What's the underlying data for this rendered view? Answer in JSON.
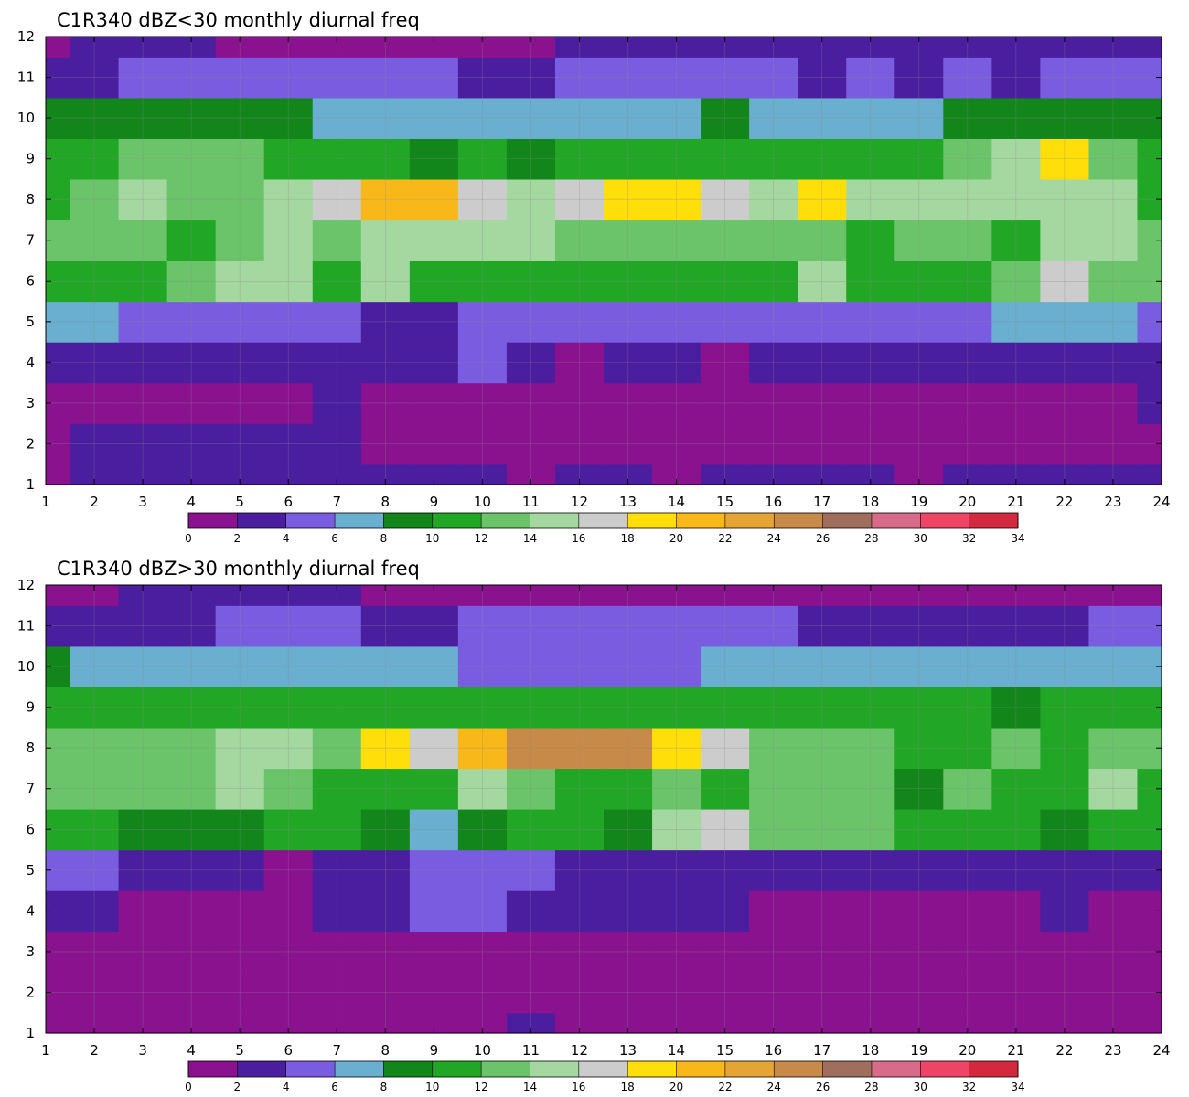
{
  "colorbar": {
    "levels": [
      0,
      2,
      4,
      6,
      8,
      10,
      12,
      14,
      16,
      18,
      20,
      22,
      24,
      26,
      28,
      30,
      32,
      34
    ],
    "colors": [
      "#8b128f",
      "#4b1ea0",
      "#7a5ce0",
      "#6aaed0",
      "#12861a",
      "#22a625",
      "#6cc46a",
      "#a5d8a0",
      "#cccccc",
      "#ffde0a",
      "#f8b81a",
      "#e5a535",
      "#c88a48",
      "#a06e5c",
      "#d86a8a",
      "#ee4466",
      "#d4283e"
    ]
  },
  "chart_data": [
    {
      "type": "heatmap",
      "title": "C1R340 dBZ<30 monthly diurnal freq",
      "xlim": [
        1,
        24
      ],
      "ylim": [
        1,
        12
      ],
      "x_ticks": [
        "1",
        "2",
        "3",
        "4",
        "5",
        "6",
        "7",
        "8",
        "9",
        "10",
        "11",
        "12",
        "13",
        "14",
        "15",
        "16",
        "17",
        "18",
        "19",
        "20",
        "21",
        "22",
        "23",
        "24"
      ],
      "y_ticks": [
        "1",
        "2",
        "3",
        "4",
        "5",
        "6",
        "7",
        "8",
        "9",
        "10",
        "11",
        "12"
      ],
      "rows": [
        [
          1,
          2,
          2,
          3,
          3,
          3,
          3,
          3,
          3,
          3,
          1,
          3,
          3,
          1,
          3,
          3,
          3,
          3,
          1,
          3,
          3,
          3,
          3,
          3
        ],
        [
          1,
          3,
          3,
          3,
          3,
          3,
          3,
          1,
          1,
          1,
          1,
          1,
          1,
          1,
          1,
          1,
          1,
          1,
          1,
          1,
          1,
          1,
          1,
          1
        ],
        [
          1,
          1,
          1,
          1,
          1,
          1,
          3,
          1,
          1,
          1,
          1,
          1,
          1,
          1,
          1,
          1,
          1,
          1,
          1,
          1,
          1,
          1,
          1,
          3
        ],
        [
          3,
          3,
          3,
          3,
          3,
          3,
          3,
          3,
          3,
          5,
          3,
          1,
          3,
          3,
          1,
          3,
          3,
          3,
          3,
          3,
          3,
          3,
          3,
          3
        ],
        [
          7,
          7,
          5,
          5,
          5,
          5,
          5,
          3,
          3,
          5,
          5,
          5,
          5,
          5,
          5,
          5,
          5,
          5,
          5,
          5,
          7,
          7,
          7,
          5
        ],
        [
          11,
          11,
          11,
          13,
          15,
          15,
          11,
          15,
          11,
          11,
          11,
          11,
          11,
          11,
          11,
          11,
          15,
          11,
          11,
          11,
          13,
          17,
          13,
          13
        ],
        [
          13,
          13,
          13,
          11,
          13,
          15,
          13,
          15,
          15,
          15,
          15,
          13,
          13,
          13,
          13,
          13,
          13,
          11,
          13,
          13,
          11,
          15,
          15,
          13
        ],
        [
          11,
          13,
          15,
          13,
          13,
          15,
          17,
          21,
          21,
          17,
          15,
          17,
          19,
          19,
          17,
          15,
          19,
          15,
          15,
          15,
          15,
          15,
          15,
          11
        ],
        [
          11,
          11,
          13,
          13,
          13,
          11,
          11,
          11,
          9,
          11,
          9,
          11,
          11,
          11,
          11,
          11,
          11,
          11,
          11,
          13,
          15,
          19,
          13,
          11
        ],
        [
          9,
          9,
          9,
          9,
          9,
          9,
          7,
          7,
          7,
          7,
          7,
          7,
          7,
          7,
          9,
          7,
          7,
          7,
          7,
          9,
          9,
          9,
          9,
          9
        ],
        [
          3,
          3,
          5,
          5,
          5,
          5,
          5,
          5,
          5,
          3,
          3,
          5,
          5,
          5,
          5,
          5,
          3,
          5,
          3,
          5,
          3,
          5,
          5,
          5
        ],
        [
          1,
          3,
          3,
          3,
          1,
          1,
          1,
          1,
          1,
          1,
          1,
          3,
          3,
          3,
          3,
          3,
          3,
          3,
          3,
          3,
          3,
          3,
          3,
          3
        ]
      ]
    },
    {
      "type": "heatmap",
      "title": "C1R340 dBZ>30 monthly diurnal freq",
      "xlim": [
        1,
        24
      ],
      "ylim": [
        1,
        12
      ],
      "x_ticks": [
        "1",
        "2",
        "3",
        "4",
        "5",
        "6",
        "7",
        "8",
        "9",
        "10",
        "11",
        "12",
        "13",
        "14",
        "15",
        "16",
        "17",
        "18",
        "19",
        "20",
        "21",
        "22",
        "23",
        "24"
      ],
      "y_ticks": [
        "1",
        "2",
        "3",
        "4",
        "5",
        "6",
        "7",
        "8",
        "9",
        "10",
        "11",
        "12"
      ],
      "rows": [
        [
          1,
          1,
          1,
          1,
          1,
          1,
          1,
          1,
          1,
          1,
          3,
          1,
          1,
          1,
          1,
          1,
          1,
          1,
          1,
          1,
          1,
          1,
          1,
          1
        ],
        [
          1,
          1,
          1,
          1,
          1,
          1,
          1,
          1,
          1,
          1,
          1,
          1,
          1,
          1,
          1,
          1,
          1,
          1,
          1,
          1,
          1,
          1,
          1,
          1
        ],
        [
          1,
          1,
          1,
          1,
          1,
          1,
          1,
          1,
          1,
          1,
          1,
          1,
          1,
          1,
          1,
          1,
          1,
          1,
          1,
          1,
          1,
          1,
          1,
          1
        ],
        [
          3,
          3,
          1,
          1,
          1,
          1,
          3,
          3,
          5,
          5,
          3,
          3,
          3,
          3,
          3,
          1,
          1,
          1,
          1,
          1,
          1,
          3,
          1,
          1
        ],
        [
          5,
          5,
          3,
          3,
          3,
          1,
          3,
          3,
          5,
          5,
          5,
          3,
          3,
          3,
          3,
          3,
          3,
          3,
          3,
          3,
          3,
          3,
          3,
          3
        ],
        [
          11,
          11,
          9,
          9,
          9,
          11,
          11,
          9,
          7,
          9,
          11,
          11,
          9,
          15,
          17,
          13,
          13,
          13,
          11,
          11,
          11,
          9,
          11,
          11
        ],
        [
          13,
          13,
          13,
          13,
          15,
          13,
          11,
          11,
          11,
          15,
          13,
          11,
          11,
          13,
          11,
          13,
          13,
          13,
          9,
          13,
          11,
          11,
          15,
          11
        ],
        [
          13,
          13,
          13,
          13,
          15,
          15,
          13,
          19,
          17,
          21,
          25,
          25,
          25,
          19,
          17,
          13,
          13,
          13,
          11,
          11,
          13,
          11,
          13,
          13
        ],
        [
          11,
          11,
          11,
          11,
          11,
          11,
          11,
          11,
          11,
          11,
          11,
          11,
          11,
          11,
          11,
          11,
          11,
          11,
          11,
          11,
          9,
          11,
          11,
          11
        ],
        [
          9,
          7,
          7,
          7,
          7,
          7,
          7,
          7,
          7,
          5,
          5,
          5,
          5,
          5,
          7,
          7,
          7,
          7,
          7,
          7,
          7,
          7,
          7,
          7
        ],
        [
          3,
          3,
          3,
          3,
          5,
          5,
          5,
          3,
          3,
          5,
          5,
          5,
          5,
          5,
          5,
          5,
          3,
          3,
          3,
          3,
          3,
          3,
          5,
          5
        ],
        [
          1,
          1,
          3,
          3,
          3,
          3,
          3,
          1,
          1,
          1,
          1,
          1,
          1,
          1,
          1,
          1,
          1,
          1,
          1,
          1,
          1,
          1,
          1,
          1
        ]
      ]
    }
  ]
}
